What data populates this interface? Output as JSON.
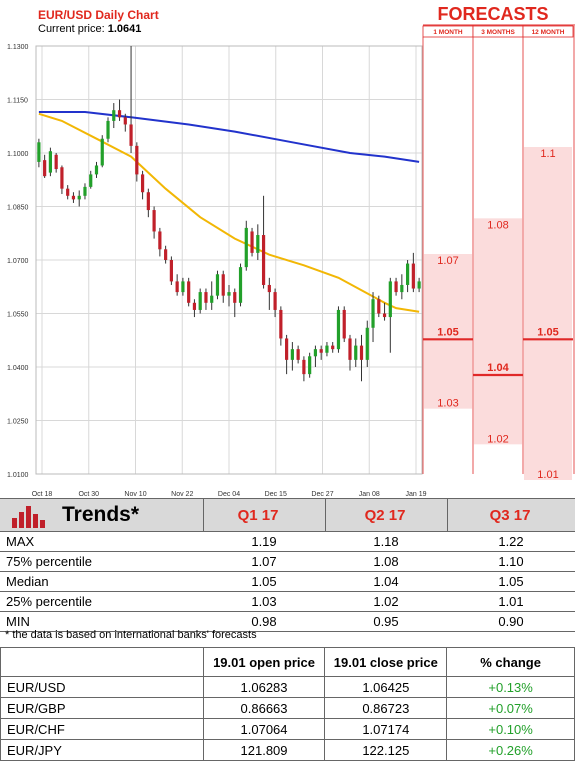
{
  "chart_data": [
    {
      "type": "candlestick",
      "title": "EUR/USD Daily Chart",
      "current_price_label": "Current price:",
      "current_price": "1.0641",
      "y_ticks": [
        "1.1300",
        "1.1150",
        "1.1000",
        "1.0850",
        "1.0700",
        "1.0550",
        "1.0400",
        "1.0250",
        "1.0100"
      ],
      "ylim": [
        1.01,
        1.13
      ],
      "x_ticks": [
        "Oct 18",
        "Oct 30",
        "Nov 10",
        "Nov 22",
        "Dec 04",
        "Dec 15",
        "Dec 27",
        "Jan 08",
        "Jan 19"
      ],
      "grid": true,
      "candles": [
        [
          1.0975,
          1.103,
          1.096,
          1.104
        ],
        [
          1.098,
          1.0935,
          1.093,
          1.0995
        ],
        [
          1.0945,
          1.1005,
          1.0935,
          1.1015
        ],
        [
          1.0995,
          1.0955,
          1.0945,
          1.1
        ],
        [
          1.096,
          1.09,
          1.0885,
          1.0965
        ],
        [
          1.09,
          1.088,
          1.087,
          1.091
        ],
        [
          1.088,
          1.087,
          1.086,
          1.089
        ],
        [
          1.087,
          1.088,
          1.085,
          1.0895
        ],
        [
          1.088,
          1.0905,
          1.087,
          1.0915
        ],
        [
          1.0905,
          1.094,
          1.09,
          1.095
        ],
        [
          1.094,
          1.0965,
          1.093,
          1.0975
        ],
        [
          1.0965,
          1.104,
          1.096,
          1.105
        ],
        [
          1.104,
          1.109,
          1.103,
          1.11
        ],
        [
          1.109,
          1.112,
          1.107,
          1.114
        ],
        [
          1.112,
          1.11,
          1.109,
          1.115
        ],
        [
          1.11,
          1.108,
          1.106,
          1.111
        ],
        [
          1.108,
          1.102,
          1.1,
          1.13
        ],
        [
          1.102,
          1.094,
          1.092,
          1.103
        ],
        [
          1.094,
          1.089,
          1.087,
          1.095
        ],
        [
          1.089,
          1.084,
          1.082,
          1.09
        ],
        [
          1.084,
          1.078,
          1.076,
          1.085
        ],
        [
          1.078,
          1.073,
          1.071,
          1.079
        ],
        [
          1.073,
          1.07,
          1.069,
          1.074
        ],
        [
          1.07,
          1.064,
          1.063,
          1.071
        ],
        [
          1.064,
          1.061,
          1.06,
          1.066
        ],
        [
          1.061,
          1.064,
          1.06,
          1.065
        ],
        [
          1.064,
          1.058,
          1.057,
          1.065
        ],
        [
          1.058,
          1.056,
          1.054,
          1.059
        ],
        [
          1.056,
          1.061,
          1.055,
          1.062
        ],
        [
          1.061,
          1.058,
          1.056,
          1.062
        ],
        [
          1.058,
          1.06,
          1.056,
          1.064
        ],
        [
          1.06,
          1.066,
          1.059,
          1.067
        ],
        [
          1.066,
          1.06,
          1.058,
          1.067
        ],
        [
          1.06,
          1.061,
          1.057,
          1.063
        ],
        [
          1.061,
          1.058,
          1.054,
          1.062
        ],
        [
          1.058,
          1.068,
          1.057,
          1.069
        ],
        [
          1.068,
          1.079,
          1.067,
          1.081
        ],
        [
          1.078,
          1.072,
          1.071,
          1.079
        ],
        [
          1.072,
          1.077,
          1.07,
          1.08
        ],
        [
          1.077,
          1.063,
          1.062,
          1.088
        ],
        [
          1.063,
          1.061,
          1.056,
          1.065
        ],
        [
          1.061,
          1.056,
          1.054,
          1.062
        ],
        [
          1.056,
          1.048,
          1.046,
          1.057
        ],
        [
          1.048,
          1.042,
          1.038,
          1.049
        ],
        [
          1.042,
          1.045,
          1.039,
          1.047
        ],
        [
          1.045,
          1.042,
          1.041,
          1.046
        ],
        [
          1.042,
          1.038,
          1.036,
          1.043
        ],
        [
          1.038,
          1.043,
          1.037,
          1.044
        ],
        [
          1.043,
          1.045,
          1.04,
          1.046
        ],
        [
          1.045,
          1.044,
          1.042,
          1.046
        ],
        [
          1.044,
          1.046,
          1.043,
          1.047
        ],
        [
          1.046,
          1.045,
          1.044,
          1.047
        ],
        [
          1.045,
          1.056,
          1.044,
          1.057
        ],
        [
          1.056,
          1.048,
          1.047,
          1.057
        ],
        [
          1.048,
          1.042,
          1.039,
          1.049
        ],
        [
          1.042,
          1.046,
          1.04,
          1.048
        ],
        [
          1.046,
          1.042,
          1.036,
          1.049
        ],
        [
          1.042,
          1.051,
          1.04,
          1.053
        ],
        [
          1.051,
          1.059,
          1.047,
          1.061
        ],
        [
          1.059,
          1.055,
          1.054,
          1.06
        ],
        [
          1.055,
          1.054,
          1.053,
          1.058
        ],
        [
          1.054,
          1.064,
          1.044,
          1.065
        ],
        [
          1.064,
          1.061,
          1.06,
          1.065
        ],
        [
          1.061,
          1.063,
          1.059,
          1.066
        ],
        [
          1.063,
          1.069,
          1.061,
          1.07
        ],
        [
          1.069,
          1.062,
          1.061,
          1.072
        ],
        [
          1.062,
          1.064,
          1.061,
          1.065
        ]
      ],
      "ma_50": [
        [
          0,
          1.111
        ],
        [
          4,
          1.109
        ],
        [
          10,
          1.104
        ],
        [
          16,
          1.099
        ],
        [
          22,
          1.09
        ],
        [
          28,
          1.082
        ],
        [
          34,
          1.076
        ],
        [
          40,
          1.0715
        ],
        [
          46,
          1.0685
        ],
        [
          52,
          1.065
        ],
        [
          56,
          1.0615
        ],
        [
          60,
          1.058
        ],
        [
          62,
          1.0565
        ],
        [
          66,
          1.0555
        ]
      ],
      "ma_200": [
        [
          0,
          1.1115
        ],
        [
          8,
          1.1115
        ],
        [
          16,
          1.11
        ],
        [
          26,
          1.108
        ],
        [
          34,
          1.106
        ],
        [
          44,
          1.103
        ],
        [
          54,
          1.1
        ],
        [
          60,
          1.099
        ],
        [
          66,
          1.0975
        ]
      ]
    },
    {
      "type": "bar",
      "title": "FORECASTS",
      "categories": [
        "1 MONTH",
        "3 MONTHS",
        "12 MONTH"
      ],
      "ranges": [
        {
          "max": 1.07,
          "median": 1.05,
          "min": 1.03,
          "max_label": "1.07",
          "median_label": "1.05",
          "min_label": "1.03"
        },
        {
          "max": 1.08,
          "median": 1.04,
          "min": 1.02,
          "max_label": "1.08",
          "median_label": "1.04",
          "min_label": "1.02"
        },
        {
          "max": 1.1,
          "median": 1.05,
          "min": 1.01,
          "max_label": "1.1",
          "median_label": "1.05",
          "min_label": "1.01"
        }
      ],
      "ylim": [
        1.01,
        1.13
      ]
    }
  ],
  "colors": {
    "bull": "#22a02a",
    "bear": "#c0202a",
    "ma_50": "#f2b705",
    "ma_200": "#2233cc",
    "forecast_fill": "#fbdcdc",
    "forecast_line": "#e02828",
    "accent": "#e0281e"
  },
  "trends": {
    "title": "Trends*",
    "icon": "bar-chart-icon",
    "columns": [
      "Q1 17",
      "Q2 17",
      "Q3 17"
    ],
    "rows": [
      {
        "label": "MAX",
        "values": [
          "1.19",
          "1.18",
          "1.22"
        ]
      },
      {
        "label": "75% percentile",
        "values": [
          "1.07",
          "1.08",
          "1.10"
        ]
      },
      {
        "label": "Median",
        "values": [
          "1.05",
          "1.04",
          "1.05"
        ]
      },
      {
        "label": "25% percentile",
        "values": [
          "1.03",
          "1.02",
          "1.01"
        ]
      },
      {
        "label": "MIN",
        "values": [
          "0.98",
          "0.95",
          "0.90"
        ]
      }
    ],
    "footnote": "* the data is based on international banks' forecasts"
  },
  "prices": {
    "columns": [
      "19.01 open price",
      "19.01 close price",
      "% change"
    ],
    "rows": [
      {
        "pair": "EUR/USD",
        "open": "1.06283",
        "close": "1.06425",
        "change": "+0.13%"
      },
      {
        "pair": "EUR/GBP",
        "open": "0.86663",
        "close": "0.86723",
        "change": "+0.07%"
      },
      {
        "pair": "EUR/CHF",
        "open": "1.07064",
        "close": "1.07174",
        "change": "+0.10%"
      },
      {
        "pair": "EUR/JPY",
        "open": "121.809",
        "close": "122.125",
        "change": "+0.26%"
      }
    ]
  }
}
